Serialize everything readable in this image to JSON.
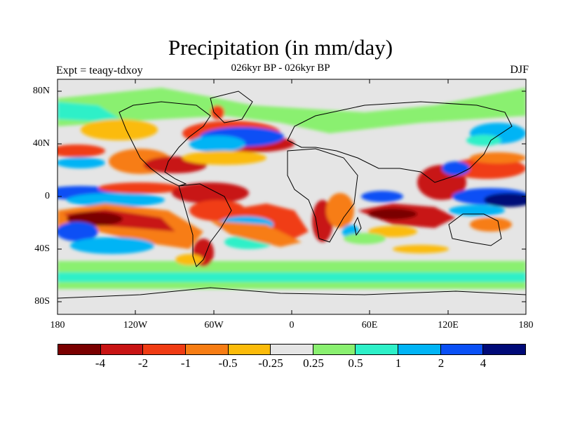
{
  "header": {
    "title": "Precipitation (in mm/day)",
    "subtitle": "026kyr BP - 026kyr BP",
    "left_label": "Expt = teaqy-tdxoy",
    "right_label": "DJF"
  },
  "axes": {
    "lat_labels": [
      "80N",
      "40N",
      "0",
      "40S",
      "80S"
    ],
    "lon_labels": [
      "180",
      "120W",
      "60W",
      "0",
      "60E",
      "120E",
      "180"
    ]
  },
  "legend": {
    "colors": [
      "#7a0000",
      "#c81414",
      "#f03c14",
      "#f77d14",
      "#fbbb0a",
      "#e5e5e5",
      "#8af070",
      "#2ef0c8",
      "#00b4f5",
      "#0a50f5",
      "#000a78"
    ],
    "labels": [
      "-4",
      "-2",
      "-1",
      "-0.5",
      "-0.25",
      "0.25",
      "0.5",
      "1",
      "2",
      "4"
    ]
  },
  "map_data": {
    "region": "global",
    "lon_range": [
      -180,
      180
    ],
    "lat_range": [
      -90,
      90
    ],
    "projection": "cylindrical equidistant",
    "field": "precipitation anomaly",
    "season": "DJF",
    "coastlines": true
  }
}
